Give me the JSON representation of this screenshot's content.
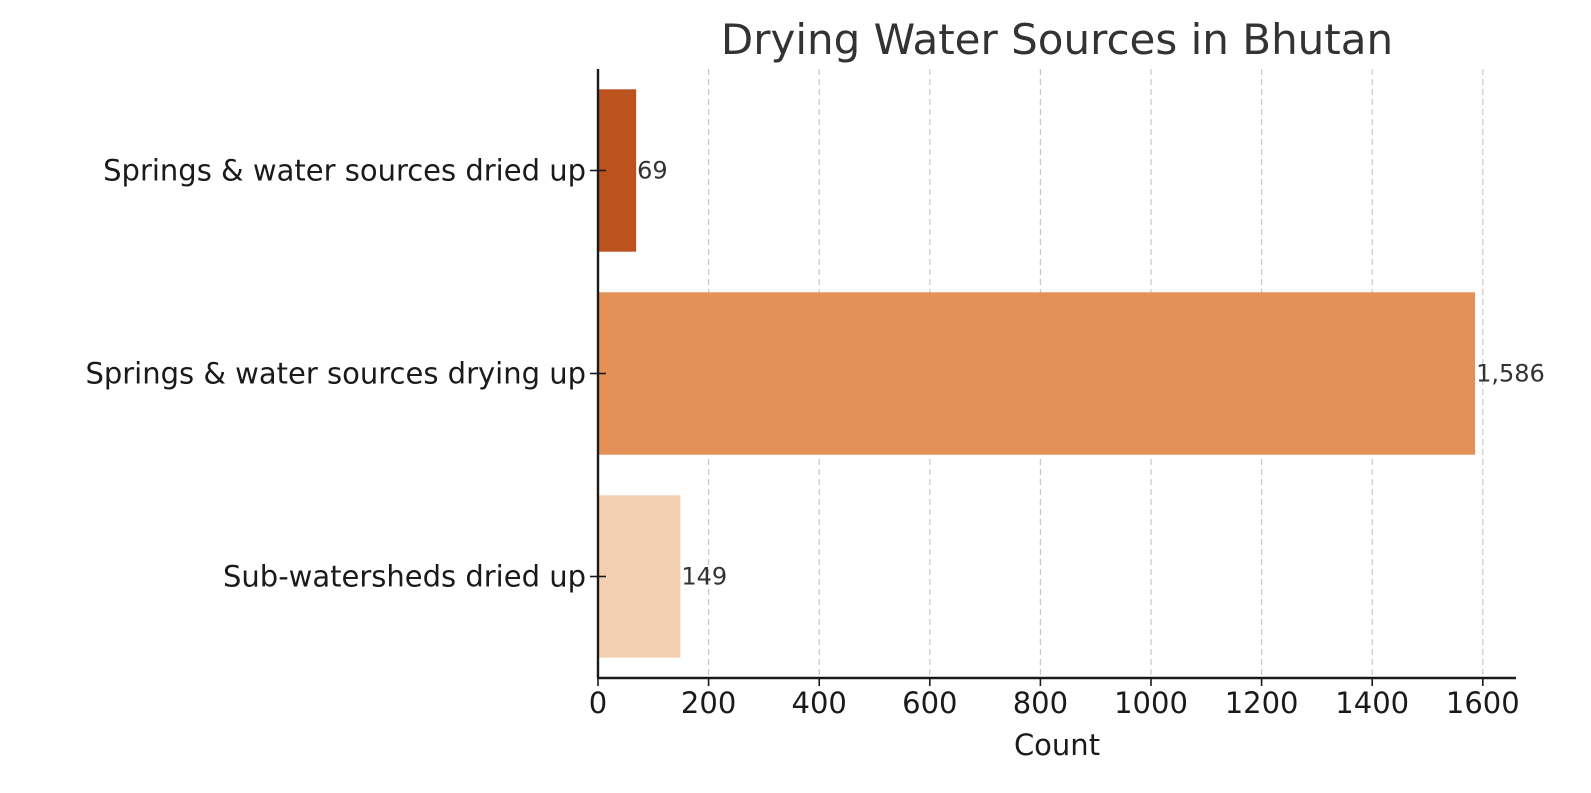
{
  "chart_data": {
    "type": "bar",
    "orientation": "horizontal",
    "title": "Drying Water Sources in Bhutan",
    "xlabel": "Count",
    "ylabel": "",
    "xlim": [
      0,
      1660
    ],
    "xticks": [
      0,
      200,
      400,
      600,
      800,
      1000,
      1200,
      1400,
      1600
    ],
    "categories": [
      "Springs & water sources dried up",
      "Springs & water sources drying up",
      "Sub-watersheds dried up"
    ],
    "values": [
      69,
      1586,
      149
    ],
    "value_labels": [
      "69",
      "1,586",
      "149"
    ],
    "colors": [
      "#bc531e",
      "#e49157",
      "#f2d0b1"
    ],
    "grid": "x-dashed",
    "legend": "none"
  }
}
